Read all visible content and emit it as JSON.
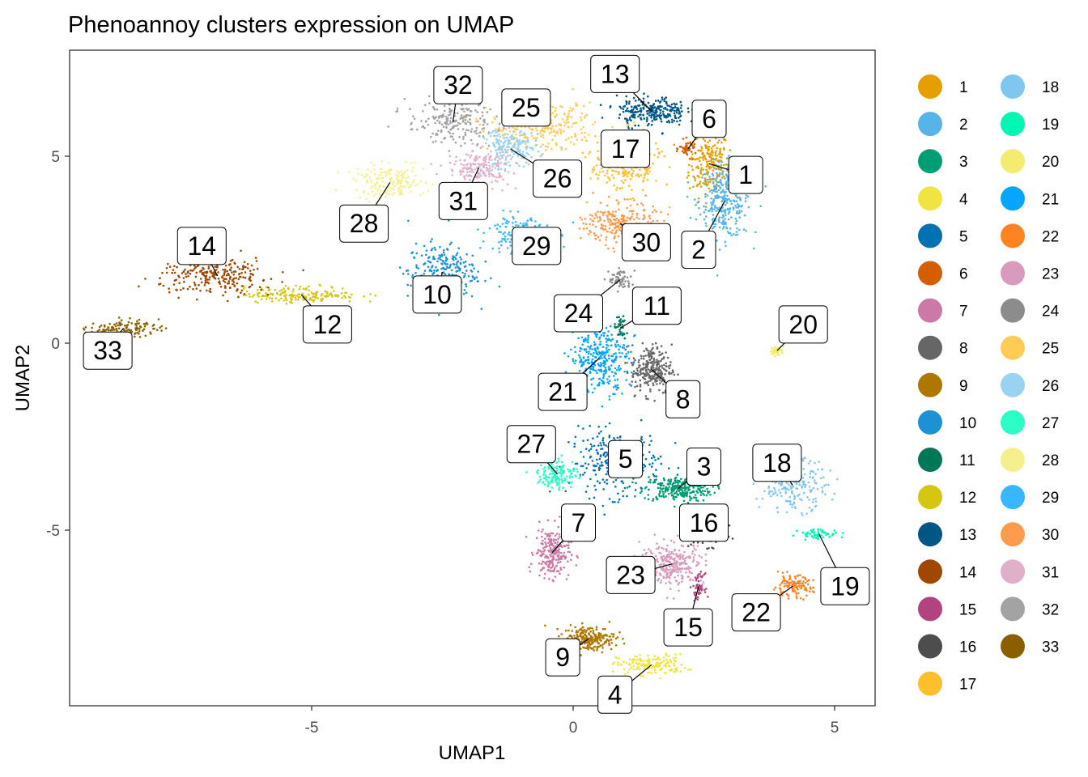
{
  "chart_data": {
    "type": "scatter",
    "title": "Phenoannoy clusters expression on UMAP",
    "xlabel": "UMAP1",
    "ylabel": "UMAP2",
    "xlim": [
      -9.6,
      5.8
    ],
    "ylim": [
      -9.8,
      7.8
    ],
    "x_ticks": [
      -5,
      0,
      5
    ],
    "x_tick_labels": [
      "-5",
      "0",
      "5"
    ],
    "y_ticks": [
      5,
      0,
      -5
    ],
    "y_tick_labels": [
      "5",
      "0",
      "-5"
    ],
    "grid": false,
    "legend_position": "right",
    "legend_columns": 2,
    "clusters": [
      {
        "id": "1",
        "color": "#E69F00",
        "centroid": [
          2.6,
          4.8
        ],
        "spread": [
          0.35,
          0.8
        ],
        "n": 220,
        "label": [
          3.3,
          4.5
        ]
      },
      {
        "id": "2",
        "color": "#56B4E9",
        "centroid": [
          2.9,
          3.8
        ],
        "spread": [
          0.45,
          0.9
        ],
        "n": 320,
        "label": [
          2.4,
          2.5
        ]
      },
      {
        "id": "3",
        "color": "#009E73",
        "centroid": [
          2.0,
          -3.9
        ],
        "spread": [
          0.6,
          0.3
        ],
        "n": 260,
        "label": [
          2.5,
          -3.3
        ]
      },
      {
        "id": "4",
        "color": "#F0E442",
        "centroid": [
          1.5,
          -8.6
        ],
        "spread": [
          0.6,
          0.25
        ],
        "n": 160,
        "label": [
          0.8,
          -9.4
        ]
      },
      {
        "id": "5",
        "color": "#0072B2",
        "centroid": [
          0.8,
          -3.2
        ],
        "spread": [
          0.8,
          0.8
        ],
        "n": 280,
        "label": [
          1.0,
          -3.1
        ]
      },
      {
        "id": "6",
        "color": "#D55E00",
        "centroid": [
          2.2,
          5.2
        ],
        "spread": [
          0.15,
          0.2
        ],
        "n": 50,
        "label": [
          2.6,
          6.0
        ]
      },
      {
        "id": "7",
        "color": "#CC79A7",
        "centroid": [
          -0.4,
          -5.6
        ],
        "spread": [
          0.3,
          0.6
        ],
        "n": 240,
        "label": [
          0.1,
          -4.8
        ]
      },
      {
        "id": "8",
        "color": "#666666",
        "centroid": [
          1.5,
          -0.7
        ],
        "spread": [
          0.35,
          0.6
        ],
        "n": 260,
        "label": [
          2.1,
          -1.5
        ]
      },
      {
        "id": "9",
        "color": "#AD7700",
        "centroid": [
          0.3,
          -7.9
        ],
        "spread": [
          0.45,
          0.3
        ],
        "n": 240,
        "label": [
          -0.2,
          -8.4
        ]
      },
      {
        "id": "10",
        "color": "#1C91D4",
        "centroid": [
          -2.5,
          1.9
        ],
        "spread": [
          0.6,
          0.7
        ],
        "n": 260,
        "label": [
          -2.6,
          1.3
        ]
      },
      {
        "id": "11",
        "color": "#007756",
        "centroid": [
          0.9,
          0.4
        ],
        "spread": [
          0.1,
          0.3
        ],
        "n": 40,
        "label": [
          1.6,
          1.0
        ]
      },
      {
        "id": "12",
        "color": "#D5C711",
        "centroid": [
          -5.2,
          1.3
        ],
        "spread": [
          1.0,
          0.2
        ],
        "n": 180,
        "label": [
          -4.7,
          0.5
        ]
      },
      {
        "id": "13",
        "color": "#005685",
        "centroid": [
          1.5,
          6.2
        ],
        "spread": [
          0.6,
          0.35
        ],
        "n": 260,
        "label": [
          0.8,
          7.2
        ]
      },
      {
        "id": "14",
        "color": "#A04700",
        "centroid": [
          -6.8,
          1.8
        ],
        "spread": [
          1.0,
          0.45
        ],
        "n": 260,
        "label": [
          -7.1,
          2.6
        ]
      },
      {
        "id": "15",
        "color": "#B14380",
        "centroid": [
          2.4,
          -6.5
        ],
        "spread": [
          0.1,
          0.3
        ],
        "n": 50,
        "label": [
          2.2,
          -7.6
        ]
      },
      {
        "id": "16",
        "color": "#4D4D4D",
        "centroid": [
          2.6,
          -5.1
        ],
        "spread": [
          0.3,
          0.3
        ],
        "n": 100,
        "label": [
          2.5,
          -4.8
        ]
      },
      {
        "id": "17",
        "color": "#FFBE2D",
        "centroid": [
          1.0,
          4.8
        ],
        "spread": [
          0.6,
          0.7
        ],
        "n": 260,
        "label": [
          1.0,
          5.2
        ]
      },
      {
        "id": "18",
        "color": "#80C7EF",
        "centroid": [
          4.2,
          -3.8
        ],
        "spread": [
          0.6,
          0.6
        ],
        "n": 220,
        "label": [
          3.9,
          -3.2
        ]
      },
      {
        "id": "19",
        "color": "#00F6B3",
        "centroid": [
          4.7,
          -5.1
        ],
        "spread": [
          0.35,
          0.12
        ],
        "n": 60,
        "label": [
          5.2,
          -6.5
        ]
      },
      {
        "id": "20",
        "color": "#F4EB71",
        "centroid": [
          3.9,
          -0.2
        ],
        "spread": [
          0.12,
          0.1
        ],
        "n": 40,
        "label": [
          4.4,
          0.5
        ]
      },
      {
        "id": "21",
        "color": "#06A5FF",
        "centroid": [
          0.5,
          -0.4
        ],
        "spread": [
          0.5,
          0.8
        ],
        "n": 320,
        "label": [
          -0.2,
          -1.3
        ]
      },
      {
        "id": "22",
        "color": "#FF8320",
        "centroid": [
          4.2,
          -6.5
        ],
        "spread": [
          0.35,
          0.25
        ],
        "n": 120,
        "label": [
          3.5,
          -7.2
        ]
      },
      {
        "id": "23",
        "color": "#D99BBD",
        "centroid": [
          1.9,
          -5.9
        ],
        "spread": [
          0.55,
          0.5
        ],
        "n": 280,
        "label": [
          1.1,
          -6.2
        ]
      },
      {
        "id": "24",
        "color": "#8C8C8C",
        "centroid": [
          0.9,
          1.7
        ],
        "spread": [
          0.2,
          0.25
        ],
        "n": 60,
        "label": [
          0.1,
          0.8
        ]
      },
      {
        "id": "25",
        "color": "#FFCB57",
        "centroid": [
          -0.6,
          5.8
        ],
        "spread": [
          0.9,
          0.55
        ],
        "n": 280,
        "label": [
          -0.9,
          6.3
        ]
      },
      {
        "id": "26",
        "color": "#9AD2F2",
        "centroid": [
          -1.2,
          5.2
        ],
        "spread": [
          0.5,
          0.5
        ],
        "n": 200,
        "label": [
          -0.3,
          4.4
        ]
      },
      {
        "id": "27",
        "color": "#2CFFC6",
        "centroid": [
          -0.3,
          -3.5
        ],
        "spread": [
          0.35,
          0.35
        ],
        "n": 140,
        "label": [
          -0.8,
          -2.7
        ]
      },
      {
        "id": "28",
        "color": "#F6EF8E",
        "centroid": [
          -3.5,
          4.3
        ],
        "spread": [
          0.6,
          0.4
        ],
        "n": 180,
        "label": [
          -4.0,
          3.2
        ]
      },
      {
        "id": "29",
        "color": "#38B7FF",
        "centroid": [
          -1.0,
          2.9
        ],
        "spread": [
          0.55,
          0.5
        ],
        "n": 200,
        "label": [
          -0.7,
          2.6
        ]
      },
      {
        "id": "30",
        "color": "#FF9B4D",
        "centroid": [
          0.9,
          3.2
        ],
        "spread": [
          0.6,
          0.5
        ],
        "n": 240,
        "label": [
          1.4,
          2.7
        ]
      },
      {
        "id": "31",
        "color": "#E0AFCA",
        "centroid": [
          -1.8,
          4.7
        ],
        "spread": [
          0.55,
          0.45
        ],
        "n": 180,
        "label": [
          -2.1,
          3.8
        ]
      },
      {
        "id": "32",
        "color": "#A3A3A3",
        "centroid": [
          -2.3,
          5.9
        ],
        "spread": [
          0.8,
          0.5
        ],
        "n": 200,
        "label": [
          -2.2,
          6.9
        ]
      },
      {
        "id": "33",
        "color": "#8A5F00",
        "centroid": [
          -8.6,
          0.4
        ],
        "spread": [
          0.6,
          0.2
        ],
        "n": 120,
        "label": [
          -8.9,
          -0.2
        ]
      }
    ]
  }
}
